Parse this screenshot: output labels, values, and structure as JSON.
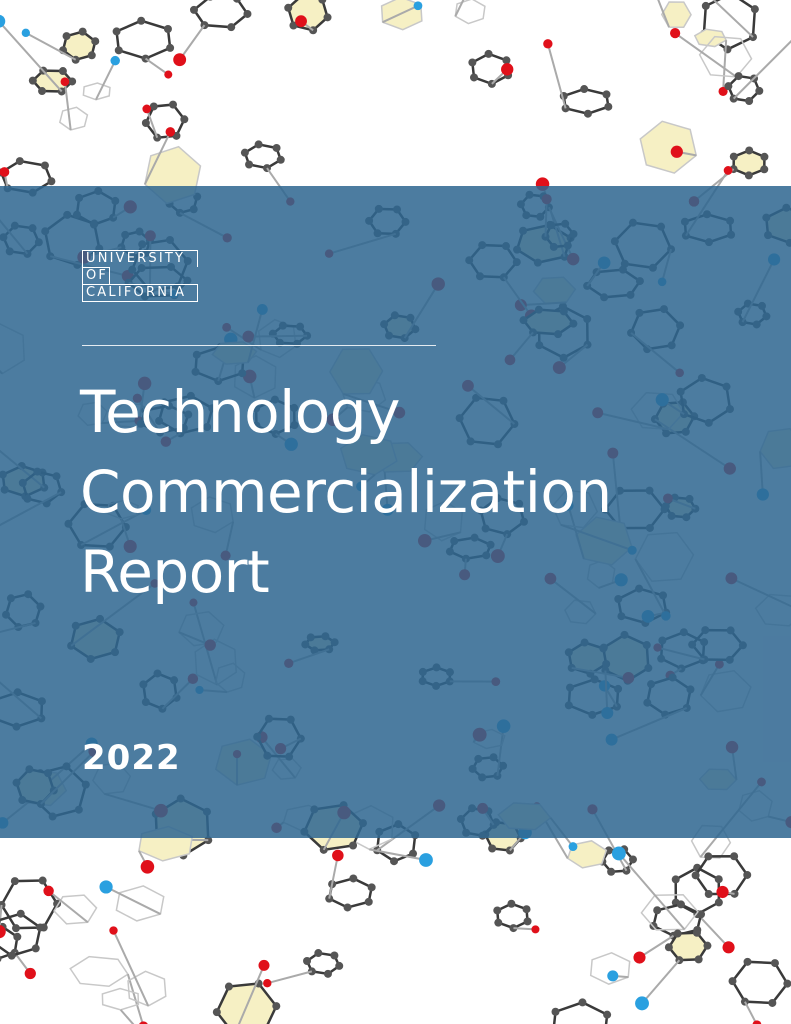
{
  "logo": {
    "lines": [
      "UNIVERSITY",
      "OF",
      "CALIFORNIA"
    ]
  },
  "title": {
    "lines": [
      "Technology",
      "Commercialization",
      "Report"
    ]
  },
  "year": "2022"
}
